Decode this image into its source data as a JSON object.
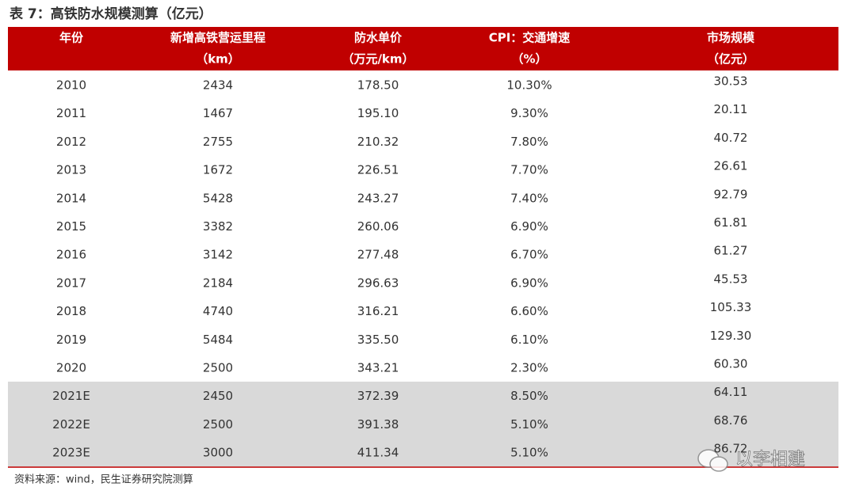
{
  "title": "表 7：高铁防水规模测算（亿元）",
  "table": {
    "header": [
      [
        "年份"
      ],
      [
        "新增高铁营运里程",
        "（km）"
      ],
      [
        "防水单价",
        "（万元/km）"
      ],
      [
        "CPI：交通增速",
        "（%）"
      ],
      [
        "市场规模",
        "（亿元）"
      ]
    ],
    "rows": [
      [
        "2010",
        "2434",
        "178.50",
        "10.30%",
        "30.53"
      ],
      [
        "2011",
        "1467",
        "195.10",
        "9.30%",
        "20.11"
      ],
      [
        "2012",
        "2755",
        "210.32",
        "7.80%",
        "40.72"
      ],
      [
        "2013",
        "1672",
        "226.51",
        "7.70%",
        "26.61"
      ],
      [
        "2014",
        "5428",
        "243.27",
        "7.40%",
        "92.79"
      ],
      [
        "2015",
        "3382",
        "260.06",
        "6.90%",
        "61.81"
      ],
      [
        "2016",
        "3142",
        "277.48",
        "6.70%",
        "61.27"
      ],
      [
        "2017",
        "2184",
        "296.63",
        "6.90%",
        "45.53"
      ],
      [
        "2018",
        "4740",
        "316.21",
        "6.60%",
        "105.33"
      ],
      [
        "2019",
        "5484",
        "335.50",
        "6.10%",
        "129.30"
      ],
      [
        "2020",
        "2500",
        "343.21",
        "2.30%",
        "60.30"
      ],
      [
        "2021E",
        "2450",
        "372.39",
        "8.50%",
        "64.11"
      ],
      [
        "2022E",
        "2500",
        "391.38",
        "5.10%",
        "68.76"
      ],
      [
        "2023E",
        "3000",
        "411.34",
        "5.10%",
        "86.72"
      ]
    ]
  },
  "source": "资料来源：wind，民生证券研究院测算",
  "watermark": "以李相建"
}
